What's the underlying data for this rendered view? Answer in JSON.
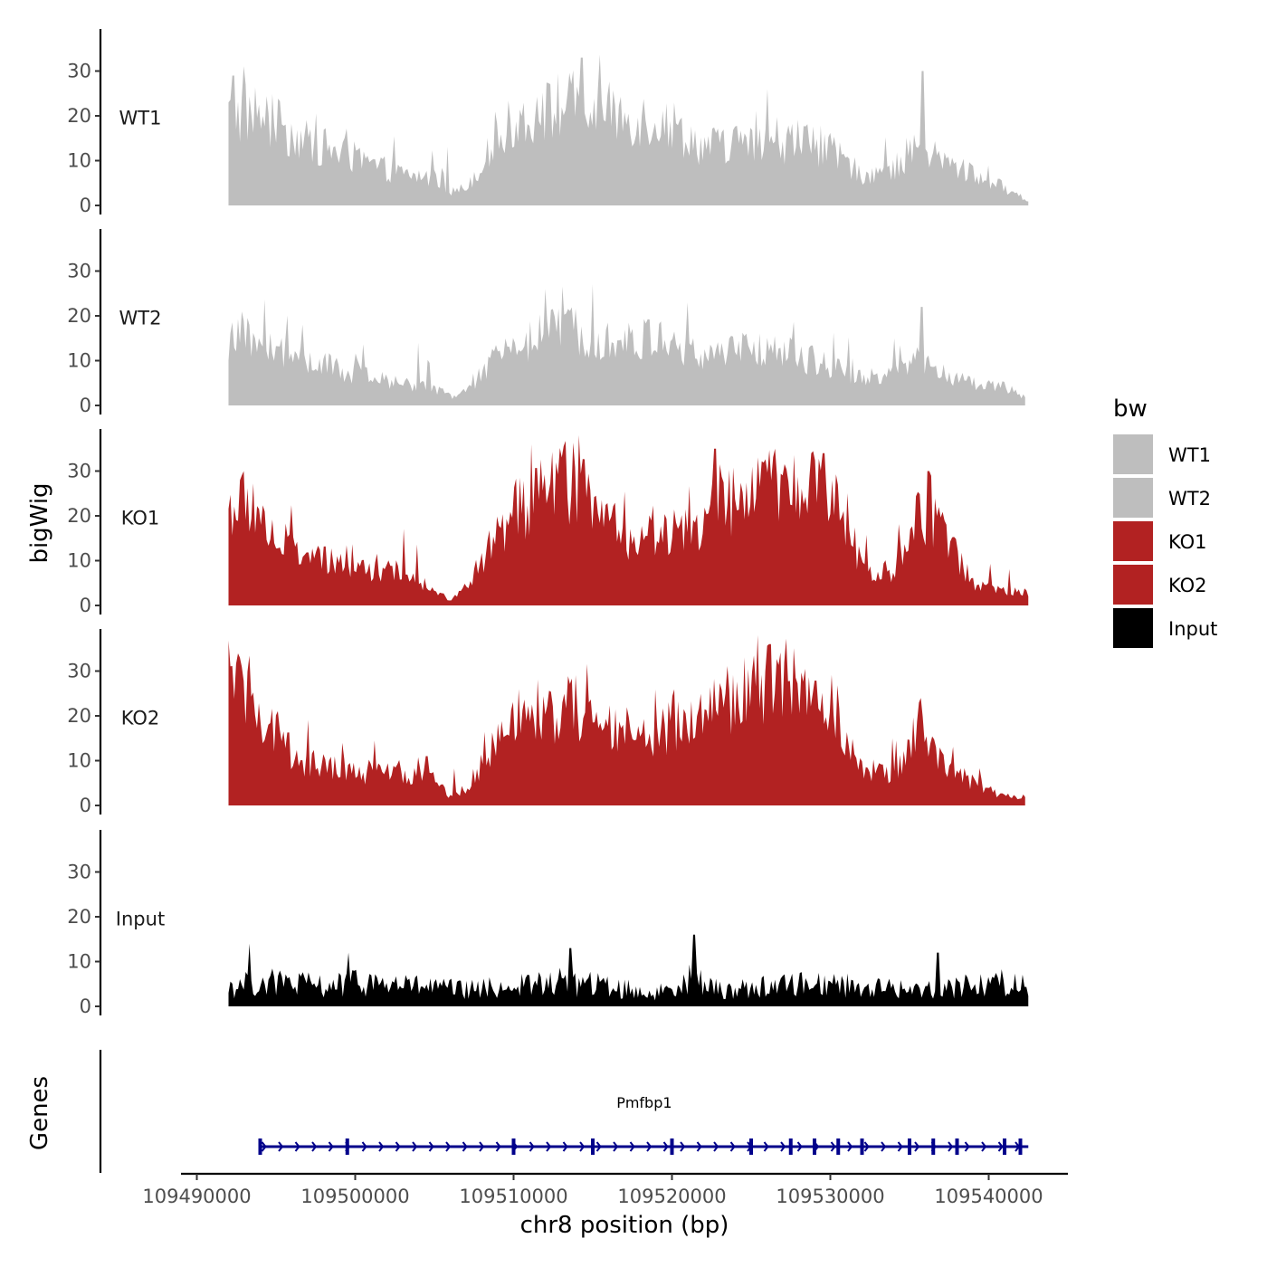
{
  "chart_data": {
    "type": "area",
    "y_axis_label": "bigWig",
    "x_axis_label": "chr8 position (bp)",
    "x_range": [
      109489000,
      109545000
    ],
    "x_ticks": [
      109490000,
      109500000,
      109510000,
      109520000,
      109530000,
      109540000
    ],
    "x_tick_labels": [
      "109490000",
      "109500000",
      "109510000",
      "109520000",
      "109530000",
      "109540000"
    ],
    "y_range": [
      0,
      39
    ],
    "y_ticks": [
      0,
      10,
      20,
      30
    ],
    "y_tick_labels": [
      "0",
      "10",
      "20",
      "30"
    ],
    "tracks": [
      {
        "name": "WT1",
        "color": "#bebebe",
        "start": 109492000,
        "end": 109542500,
        "profile_x": [
          109492000,
          109493500,
          109495000,
          109497000,
          109499000,
          109501000,
          109503000,
          109505000,
          109506000,
          109507000,
          109508500,
          109510000,
          109512000,
          109514000,
          109515000,
          109517000,
          109519000,
          109520000,
          109522000,
          109524000,
          109526000,
          109528000,
          109530000,
          109532000,
          109534000,
          109535500,
          109537000,
          109539000,
          109541000,
          109542500
        ],
        "profile_y": [
          20,
          21,
          18,
          14,
          12,
          9,
          7,
          6,
          3,
          4,
          12,
          19,
          21,
          23,
          21,
          20,
          19,
          18,
          13,
          14,
          13,
          15,
          12,
          7,
          8,
          14,
          10,
          7,
          4,
          1
        ],
        "peaks_x": [
          109492300,
          109514300,
          109526000,
          109535800
        ],
        "peaks_y": [
          29,
          33,
          26,
          30
        ]
      },
      {
        "name": "WT2",
        "color": "#bebebe",
        "start": 109492000,
        "end": 109542300,
        "profile_x": [
          109492000,
          109493500,
          109495000,
          109497000,
          109499000,
          109501000,
          109503000,
          109505000,
          109506000,
          109507000,
          109508500,
          109510000,
          109512000,
          109514000,
          109515000,
          109517000,
          109519000,
          109520000,
          109522000,
          109524000,
          109526000,
          109528000,
          109530000,
          109532000,
          109534000,
          109535500,
          109537000,
          109539000,
          109541000,
          109542300
        ],
        "profile_y": [
          14,
          15,
          12,
          10,
          8,
          6,
          5,
          4,
          2,
          3,
          9,
          14,
          16,
          17,
          16,
          14,
          15,
          13,
          11,
          12,
          13,
          11,
          9,
          6,
          7,
          10,
          7,
          5,
          4,
          2
        ],
        "peaks_x": [
          109512000,
          109515000,
          109521000,
          109535800
        ],
        "peaks_y": [
          26,
          27,
          23,
          22
        ]
      },
      {
        "name": "KO1",
        "color": "#b22222",
        "start": 109492000,
        "end": 109542500,
        "profile_x": [
          109492000,
          109493500,
          109495000,
          109497000,
          109499000,
          109501000,
          109503000,
          109505000,
          109506000,
          109507000,
          109508500,
          109510000,
          109512000,
          109514000,
          109515000,
          109517000,
          109519000,
          109520000,
          109522000,
          109524000,
          109526000,
          109528000,
          109530000,
          109532000,
          109534000,
          109535500,
          109537000,
          109539000,
          109541000,
          109542500
        ],
        "profile_y": [
          22,
          23,
          15,
          11,
          9,
          8,
          7,
          4,
          1,
          4,
          13,
          20,
          26,
          28,
          22,
          15,
          17,
          16,
          18,
          24,
          26,
          25,
          27,
          9,
          7,
          20,
          18,
          5,
          3,
          3
        ],
        "peaks_x": [
          109514100,
          109522700,
          109526500,
          109529600,
          109536200
        ],
        "peaks_y": [
          38,
          35,
          35,
          34,
          30
        ]
      },
      {
        "name": "KO2",
        "color": "#b22222",
        "start": 109492000,
        "end": 109542300,
        "profile_x": [
          109492000,
          109493500,
          109495000,
          109497000,
          109499000,
          109501000,
          109503000,
          109505000,
          109506000,
          109507000,
          109508500,
          109510000,
          109512000,
          109514000,
          109515000,
          109517000,
          109519000,
          109520000,
          109522000,
          109524000,
          109526000,
          109528000,
          109530000,
          109532000,
          109534000,
          109535500,
          109537000,
          109539000,
          109541000,
          109542300
        ],
        "profile_y": [
          25,
          26,
          15,
          9,
          8,
          7,
          7,
          6,
          2,
          4,
          12,
          18,
          20,
          22,
          19,
          15,
          16,
          18,
          21,
          24,
          27,
          24,
          23,
          9,
          6,
          18,
          10,
          5,
          2,
          2
        ],
        "peaks_x": [
          109492700,
          109504500,
          109525400,
          109526200,
          109535700
        ],
        "peaks_y": [
          33,
          11,
          38,
          36,
          24
        ]
      },
      {
        "name": "Input",
        "color": "#000000",
        "start": 109492000,
        "end": 109542500,
        "profile_x": [
          109492000,
          109495000,
          109498000,
          109501000,
          109504000,
          109507000,
          109510000,
          109513000,
          109516000,
          109519000,
          109521000,
          109523000,
          109526000,
          109529000,
          109532000,
          109535000,
          109538000,
          109541000,
          109542500
        ],
        "profile_y": [
          5,
          6,
          5,
          6,
          5,
          4,
          5,
          6,
          5,
          3,
          7,
          4,
          5,
          6,
          5,
          4,
          5,
          6,
          5
        ],
        "peaks_x": [
          109493300,
          109499600,
          109513600,
          109521400,
          109536800
        ],
        "peaks_y": [
          14,
          12,
          13,
          16,
          12
        ]
      }
    ],
    "genes": {
      "title": "Genes",
      "name": "Pmfbp1",
      "color": "#00008b",
      "start": 109494000,
      "end": 109542500,
      "strand": "+",
      "exons": [
        109494000,
        109499500,
        109510000,
        109515000,
        109520000,
        109525000,
        109527500,
        109529000,
        109530500,
        109532000,
        109535000,
        109536500,
        109538000,
        109541000,
        109542000
      ]
    },
    "legend": {
      "title": "bw",
      "entries": [
        {
          "label": "WT1",
          "color": "#bebebe"
        },
        {
          "label": "WT2",
          "color": "#bebebe"
        },
        {
          "label": "KO1",
          "color": "#b22222"
        },
        {
          "label": "KO2",
          "color": "#b22222"
        },
        {
          "label": "Input",
          "color": "#000000"
        }
      ]
    }
  }
}
